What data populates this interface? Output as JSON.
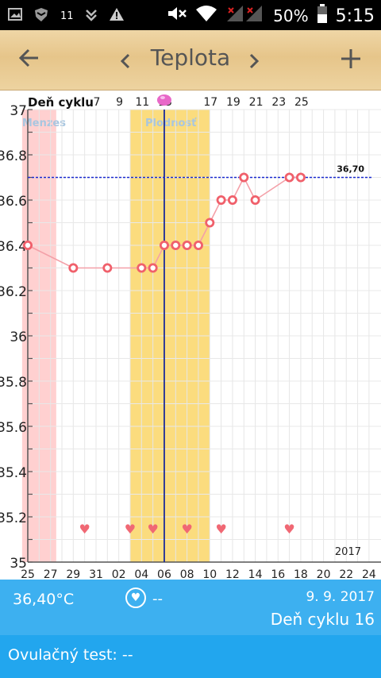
{
  "status_bar": {
    "notif_count": "11",
    "battery": "50%",
    "time": "5:15",
    "icons": [
      "image-icon",
      "shield-icon",
      "download-icon",
      "warning-icon",
      "mute-icon",
      "wifi-icon",
      "signal-icon",
      "battery-icon"
    ]
  },
  "app_bar": {
    "back_icon": "arrow-left-icon",
    "prev_icon": "chevron-left-icon",
    "title": "Teplota",
    "next_icon": "chevron-right-icon",
    "add_icon": "plus-icon"
  },
  "chart_data": {
    "type": "line",
    "header_label": "Deň cyklu",
    "cycle_days_top": [
      "7",
      "9",
      "11",
      "13",
      "17",
      "19",
      "21",
      "23",
      "25"
    ],
    "x_ticks": [
      "25",
      "27",
      "29",
      "31",
      "02",
      "04",
      "06",
      "08",
      "10",
      "12",
      "14",
      "16",
      "18",
      "20",
      "22",
      "24"
    ],
    "y_ticks": [
      "37",
      "36.8",
      "36.6",
      "36.4",
      "36.2",
      "36",
      "35.8",
      "35.6",
      "35.4",
      "35.2",
      "35"
    ],
    "ylim": [
      35,
      37
    ],
    "zones": [
      {
        "label": "Menzes",
        "start_day": -0.5,
        "end_day": 2.5,
        "color": "#ffd0d0"
      },
      {
        "label": "Plodnosť",
        "start_day": 9.0,
        "end_day": 16.0,
        "color": "#fbdc7e"
      }
    ],
    "ovulation_day": 12.0,
    "coverline": {
      "value": 36.7,
      "label": "36,70"
    },
    "points": [
      {
        "day": 0,
        "temp": 36.4
      },
      {
        "day": 4,
        "temp": 36.3
      },
      {
        "day": 7,
        "temp": 36.3
      },
      {
        "day": 10,
        "temp": 36.3
      },
      {
        "day": 11,
        "temp": 36.3
      },
      {
        "day": 12,
        "temp": 36.4
      },
      {
        "day": 13,
        "temp": 36.4
      },
      {
        "day": 14,
        "temp": 36.4
      },
      {
        "day": 15,
        "temp": 36.4
      },
      {
        "day": 16,
        "temp": 36.5
      },
      {
        "day": 17,
        "temp": 36.6
      },
      {
        "day": 18,
        "temp": 36.6
      },
      {
        "day": 19,
        "temp": 36.7
      },
      {
        "day": 20,
        "temp": 36.6
      },
      {
        "day": 23,
        "temp": 36.7
      },
      {
        "day": 24,
        "temp": 36.7
      }
    ],
    "hearts_days": [
      5,
      9,
      11,
      14,
      17,
      23
    ],
    "year": "2017"
  },
  "footer": {
    "temperature": "36,40°C",
    "heart_value": "--",
    "date": "9. 9. 2017",
    "cycle_day": "Deň cyklu 16",
    "ovulation_test": "Ovulačný test: --"
  },
  "colors": {
    "line": "#f4a0a8",
    "marker": "#f0606b",
    "footer_top": "#3db0f0",
    "footer_bottom": "#22a6ee"
  }
}
